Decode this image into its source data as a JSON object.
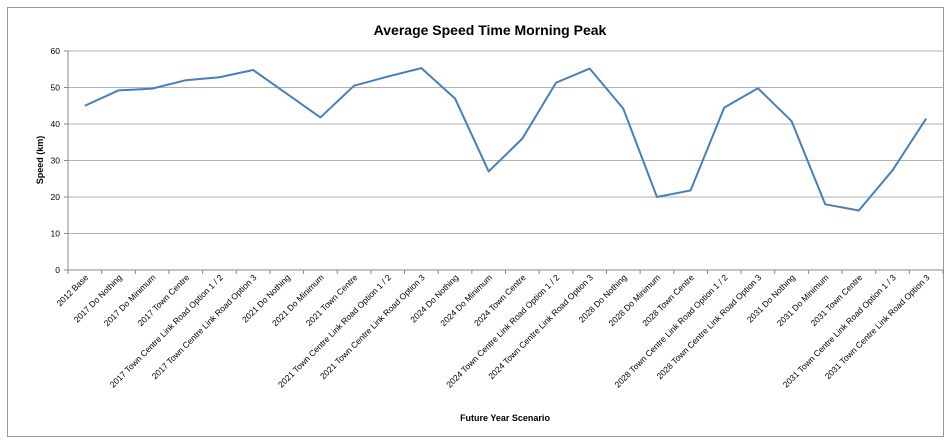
{
  "chart_data": {
    "type": "line",
    "title": "Average Speed Time Morning Peak",
    "x_label": "Future Year Scenario",
    "y_label": "Speed (km)",
    "categories": [
      "2012 Base",
      "2017 Do Nothing",
      "2017 Do Minimum",
      "2017 Town Centre",
      "2017 Town Centre Link Road Option 1 / 2",
      "2017 Town Centre Link Road Option 3",
      "2021 Do Nothing",
      "2021 Do Minimum",
      "2021 Town Centre",
      "2021 Town Centre Link Road Option 1 / 2",
      "2021 Town Centre Link Road Option 3",
      "2024 Do Nothing",
      "2024 Do Minimum",
      "2024 Town Centre",
      "2024 Town Centre Link Road Option 1 / 2",
      "2024 Town Centre Link Road Option 3",
      "2028 Do Nothing",
      "2028 Do Minimum",
      "2028 Town Centre",
      "2028 Town Centre Link Road Option 1 / 2",
      "2028 Town Centre Link Road Option 3",
      "2031 Do Nothing",
      "2031 Do Minimum",
      "2031 Town Centre",
      "2031 Town Centre Link Road Option 1 / 3",
      "2031 Town Centre Link Road Option 3"
    ],
    "values": [
      45,
      49.2,
      49.7,
      52,
      52.8,
      54.8,
      48.3,
      41.8,
      50.5,
      53,
      55.3,
      47,
      27,
      36,
      51.3,
      55.2,
      44.2,
      20,
      21.8,
      44.5,
      49.8,
      40.8,
      18,
      16.3,
      27.3,
      41.5
    ],
    "color": "#4a7ebb",
    "ylim": [
      0,
      60
    ],
    "yticks": [
      0,
      10,
      20,
      30,
      40,
      50,
      60
    ],
    "grid": true
  }
}
